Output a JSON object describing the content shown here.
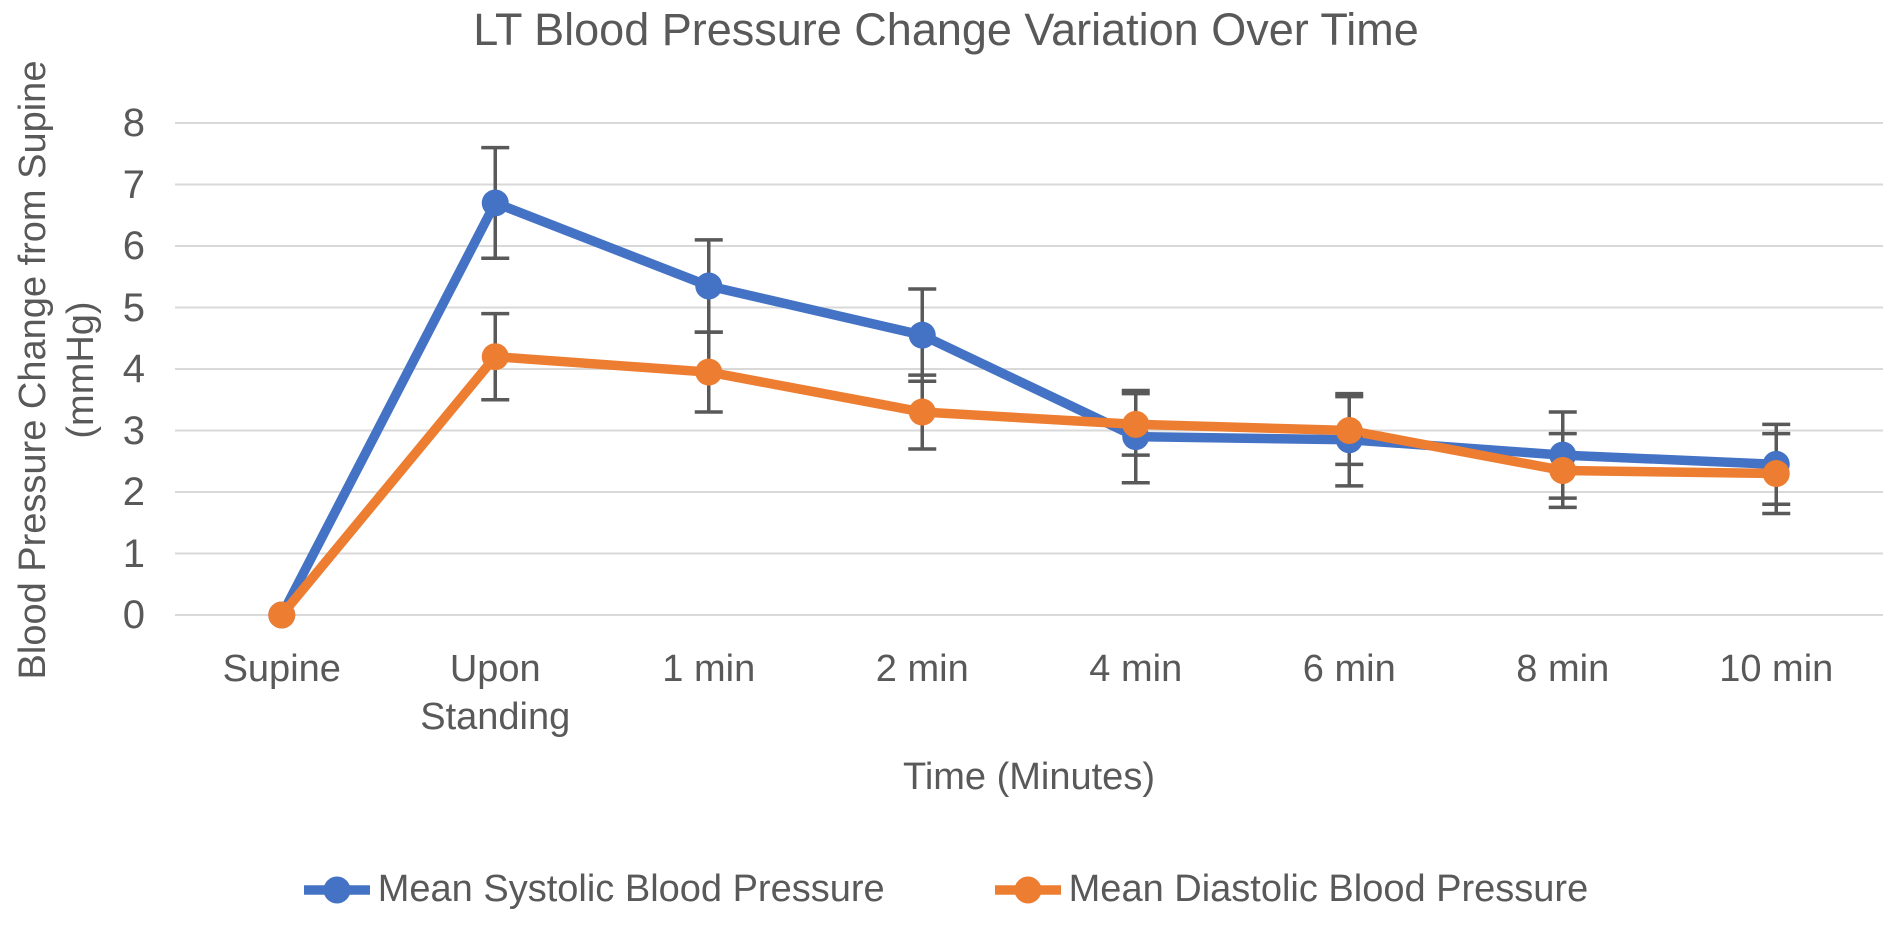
{
  "chart_data": {
    "type": "line",
    "title": "LT Blood Pressure Change Variation Over Time",
    "xlabel": "Time (Minutes)",
    "ylabel": "Blood Pressure Change from Supine",
    "ylabel_unit": "(mmHg)",
    "categories": [
      "Supine",
      "Upon Standing",
      "1 min",
      "2 min",
      "4 min",
      "6 min",
      "8 min",
      "10 min"
    ],
    "yticks": [
      0,
      1,
      2,
      3,
      4,
      5,
      6,
      7,
      8
    ],
    "ylim": [
      0,
      8
    ],
    "grid": true,
    "legend_position": "bottom",
    "error_bars": true,
    "series": [
      {
        "name": "Mean Systolic Blood Pressure",
        "color": "#4472C4",
        "values": [
          0,
          6.7,
          5.35,
          4.55,
          2.9,
          2.85,
          2.6,
          2.45
        ],
        "error": [
          0,
          0.9,
          0.75,
          0.75,
          0.75,
          0.75,
          0.7,
          0.65
        ]
      },
      {
        "name": "Mean Diastolic Blood Pressure",
        "color": "#ED7D31",
        "values": [
          0,
          4.2,
          3.95,
          3.3,
          3.1,
          3.0,
          2.35,
          2.3
        ],
        "error": [
          0,
          0.7,
          0.65,
          0.6,
          0.5,
          0.55,
          0.6,
          0.65
        ]
      }
    ],
    "colors": {
      "gridline": "#D9D9D9",
      "error_bar": "#595959",
      "text": "#595959"
    }
  }
}
